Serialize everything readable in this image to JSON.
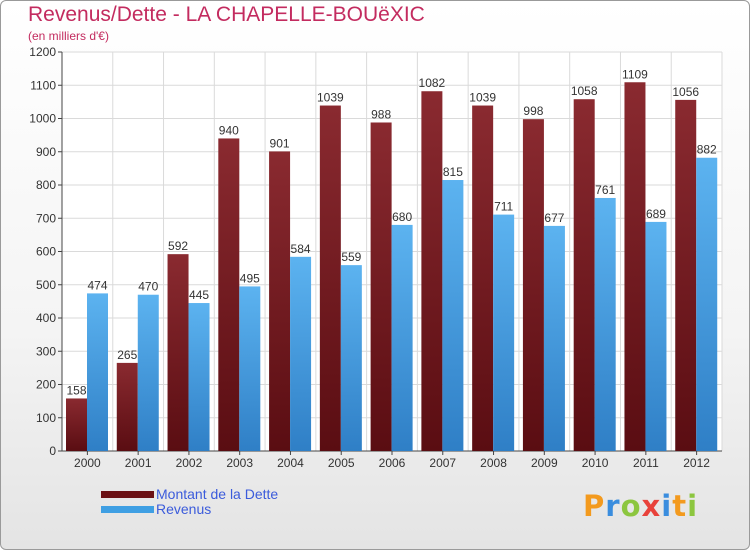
{
  "chart_data": {
    "type": "bar",
    "title": "Revenus/Dette - LA CHAPELLE-BOUëXIC",
    "subtitle": "(en milliers d'€)",
    "categories": [
      "2000",
      "2001",
      "2002",
      "2003",
      "2004",
      "2005",
      "2006",
      "2007",
      "2008",
      "2009",
      "2010",
      "2011",
      "2012"
    ],
    "series": [
      {
        "name": "Montant de la Dette",
        "color": "#7f1f24",
        "values": [
          158,
          265,
          592,
          940,
          901,
          1039,
          988,
          1082,
          1039,
          998,
          1058,
          1109,
          1056
        ]
      },
      {
        "name": "Revenus",
        "color": "#3f9fe3",
        "values": [
          474,
          470,
          445,
          495,
          584,
          559,
          680,
          815,
          711,
          677,
          761,
          689,
          882
        ]
      }
    ],
    "ylim": [
      0,
      1200
    ],
    "yticks": [
      0,
      100,
      200,
      300,
      400,
      500,
      600,
      700,
      800,
      900,
      1000,
      1100,
      1200
    ],
    "grid": true,
    "legend": "bottom-left"
  },
  "logo": {
    "text": "Proxiti",
    "colors": [
      "#f39a1e",
      "#3a8dde",
      "#8cc63f",
      "#e8423b",
      "#3a8dde",
      "#f39a1e",
      "#8cc63f"
    ]
  }
}
